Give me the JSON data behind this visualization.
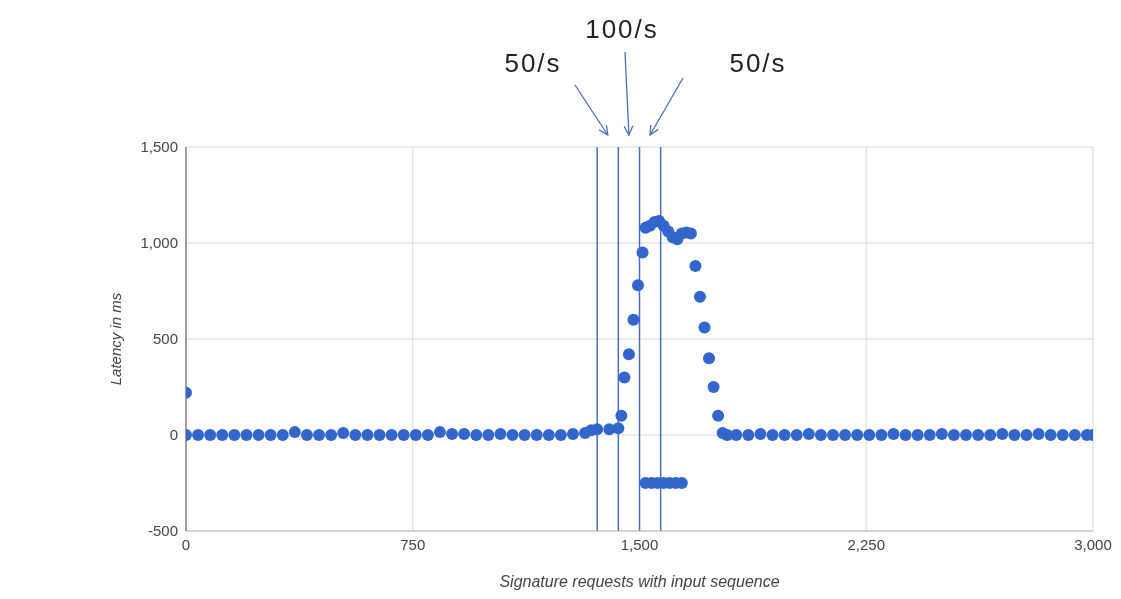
{
  "chart_data": {
    "type": "scatter",
    "xlabel": "Signature requests with input sequence",
    "ylabel": "Latency in ms",
    "xlim": [
      0,
      3000
    ],
    "xticks": [
      0,
      750,
      {
        "value": 1500,
        "label": "1,500"
      },
      {
        "value": 2250,
        "label": "2,250"
      },
      {
        "value": 3000,
        "label": "3,000"
      }
    ],
    "ylim": [
      -500,
      1500
    ],
    "yticks": [
      -500,
      0,
      500,
      {
        "value": 1000,
        "label": "1,000"
      },
      {
        "value": 1500,
        "label": "1,500"
      }
    ],
    "grid": true,
    "marker": "circle",
    "legend": false,
    "series": [
      {
        "color": "#3366cc",
        "x": [
          0,
          0,
          40,
          80,
          120,
          160,
          200,
          240,
          280,
          320,
          360,
          400,
          440,
          480,
          520,
          560,
          600,
          640,
          680,
          720,
          760,
          800,
          840,
          880,
          920,
          960,
          1000,
          1040,
          1080,
          1120,
          1160,
          1200,
          1240,
          1280,
          1320,
          1340,
          1360,
          1400,
          1430,
          1440,
          1450,
          1465,
          1480,
          1495,
          1510,
          1520,
          1535,
          1550,
          1565,
          1580,
          1595,
          1610,
          1625,
          1640,
          1655,
          1670,
          1685,
          1700,
          1715,
          1730,
          1745,
          1760,
          1775,
          1790,
          1820,
          1860,
          1900,
          1940,
          1980,
          2020,
          2060,
          2100,
          2140,
          2180,
          2220,
          2260,
          2300,
          2340,
          2380,
          2420,
          2460,
          2500,
          2540,
          2580,
          2620,
          2660,
          2700,
          2740,
          2780,
          2820,
          2860,
          2900,
          2940,
          2980,
          3000,
          1520,
          1540,
          1560,
          1580,
          1600,
          1620,
          1640
        ],
        "values": [
          220,
          0,
          0,
          0,
          0,
          0,
          0,
          0,
          0,
          0,
          15,
          0,
          0,
          0,
          10,
          0,
          0,
          0,
          0,
          0,
          0,
          0,
          15,
          5,
          5,
          0,
          0,
          5,
          0,
          0,
          0,
          0,
          0,
          5,
          10,
          25,
          30,
          30,
          35,
          100,
          300,
          420,
          600,
          780,
          950,
          1080,
          1090,
          1110,
          1115,
          1090,
          1060,
          1030,
          1020,
          1050,
          1055,
          1050,
          880,
          720,
          560,
          400,
          250,
          100,
          10,
          0,
          0,
          0,
          5,
          0,
          0,
          0,
          5,
          0,
          0,
          0,
          0,
          0,
          0,
          5,
          0,
          0,
          0,
          5,
          0,
          0,
          0,
          0,
          5,
          0,
          0,
          5,
          0,
          0,
          0,
          0,
          0,
          -250,
          -250,
          -250,
          -250,
          -250,
          -250,
          -250
        ]
      }
    ],
    "ref_lines": [
      {
        "axis": "x",
        "value": 1360,
        "color": "#4a6fc0"
      },
      {
        "axis": "x",
        "value": 1430,
        "color": "#4a6fc0"
      },
      {
        "axis": "x",
        "value": 1500,
        "color": "#4a6fc0"
      },
      {
        "axis": "x",
        "value": 1570,
        "color": "#4a6fc0"
      }
    ],
    "annotations": [
      "50/s",
      "100/s",
      "50/s"
    ]
  }
}
